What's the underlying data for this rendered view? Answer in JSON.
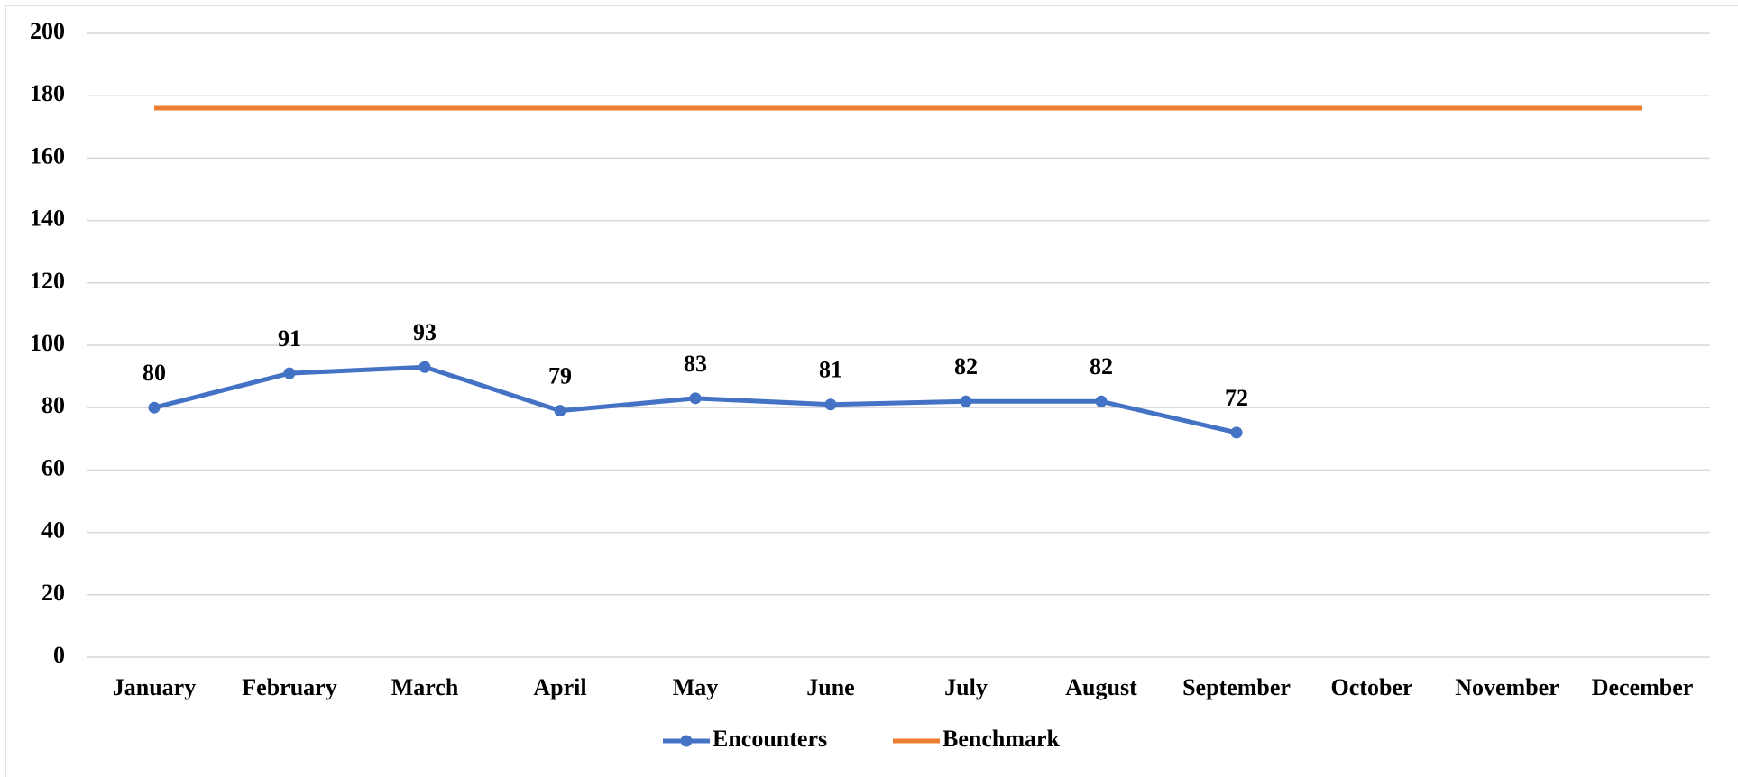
{
  "chart_data": {
    "type": "line",
    "categories": [
      "January",
      "February",
      "March",
      "April",
      "May",
      "June",
      "July",
      "August",
      "September",
      "October",
      "November",
      "December"
    ],
    "series": [
      {
        "name": "Encounters",
        "color": "#4472c4",
        "values": [
          80,
          91,
          93,
          79,
          83,
          81,
          82,
          82,
          72,
          null,
          null,
          null
        ],
        "markers": true,
        "data_labels": true
      },
      {
        "name": "Benchmark",
        "color": "#ed7d31",
        "values": [
          176,
          176,
          176,
          176,
          176,
          176,
          176,
          176,
          176,
          176,
          176,
          176
        ],
        "markers": false,
        "data_labels": false
      }
    ],
    "ylim": [
      0,
      200
    ],
    "yticks": [
      0,
      20,
      40,
      60,
      80,
      100,
      120,
      140,
      160,
      180,
      200
    ],
    "grid": true,
    "legend": "bottom"
  }
}
